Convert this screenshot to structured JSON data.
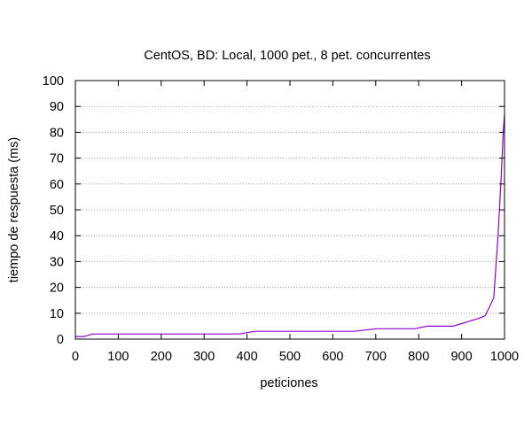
{
  "chart_data": {
    "type": "line",
    "title": "CentOS, BD: Local,  1000 pet., 8 pet. concurrentes",
    "xlabel": "peticiones",
    "ylabel": "tiempo de respuesta (ms)",
    "xlim": [
      0,
      1000
    ],
    "ylim": [
      0,
      100
    ],
    "xticks": [
      "0",
      "100",
      "200",
      "300",
      "400",
      "500",
      "600",
      "700",
      "800",
      "900",
      "1000"
    ],
    "yticks": [
      "0",
      "10",
      "20",
      "30",
      "40",
      "50",
      "60",
      "70",
      "80",
      "90",
      "100"
    ],
    "grid": "horizontal-dotted",
    "legend": "none",
    "series": [
      {
        "color": "#9400d3",
        "x": [
          0,
          20,
          40,
          100,
          200,
          300,
          380,
          420,
          500,
          600,
          650,
          700,
          750,
          790,
          820,
          850,
          880,
          900,
          920,
          940,
          955,
          975,
          985,
          993,
          997,
          1000
        ],
        "y": [
          1,
          1,
          2,
          2,
          2,
          2,
          2,
          3,
          3,
          3,
          3,
          4,
          4,
          4,
          5,
          5,
          5,
          6,
          7,
          8,
          9,
          16,
          40,
          65,
          80,
          87
        ]
      }
    ]
  }
}
